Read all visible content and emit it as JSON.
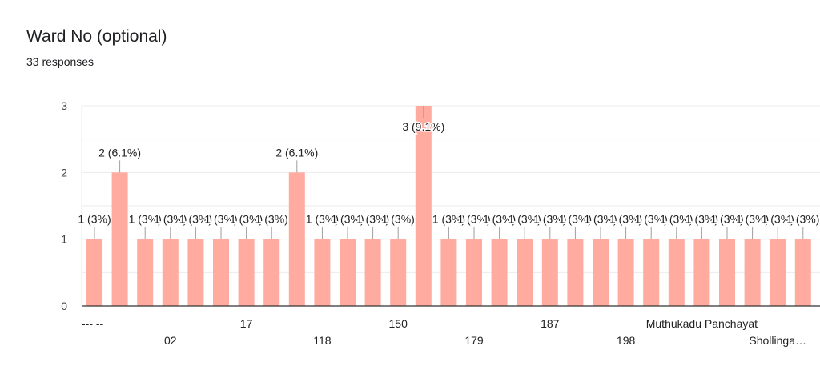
{
  "question": {
    "title": "Ward No (optional)",
    "responses": "33 responses"
  },
  "colors": {
    "bar": "#ffab9f",
    "grid": "#ebebeb",
    "axis": "#333333",
    "leader": "#9e9e9e"
  },
  "chart_data": {
    "type": "bar",
    "categories": [
      "--- --",
      "",
      "",
      "02",
      "",
      "",
      "17",
      "",
      "",
      "118",
      "",
      "",
      "150",
      "",
      "",
      "179",
      "",
      "",
      "187",
      "",
      "",
      "198",
      "",
      "",
      "Muthukadu Panchayat",
      "",
      "",
      "Shollinga…",
      ""
    ],
    "values": [
      1,
      2,
      1,
      1,
      1,
      1,
      1,
      1,
      2,
      1,
      1,
      1,
      1,
      3,
      1,
      1,
      1,
      1,
      1,
      1,
      1,
      1,
      1,
      1,
      1,
      1,
      1,
      1,
      1
    ],
    "data_labels": [
      "1 (3%)",
      "2 (6.1%)",
      "1 (3%)",
      "1 (3%)",
      "1 (3%)",
      "1 (3%)",
      "1 (3%)",
      "1 (3%)",
      "2 (6.1%)",
      "1 (3%)",
      "1 (3%)",
      "1 (3%)",
      "1 (3%)",
      "3 (9.1%)",
      "1 (3%)",
      "1 (3%)",
      "1 (3%)",
      "1 (3%)",
      "1 (3%)",
      "1 (3%)",
      "1 (3%)",
      "1 (3%)",
      "1 (3%)",
      "1 (3%)",
      "1 (3%)",
      "1 (3%)",
      "1 (3%)",
      "1 (3%)",
      "1 (3%)"
    ],
    "y_ticks": [
      "0",
      "1",
      "2",
      "3"
    ],
    "ylim": [
      0,
      3
    ],
    "grid": true,
    "title": "Ward No (optional)",
    "xlabel": "",
    "ylabel": ""
  }
}
